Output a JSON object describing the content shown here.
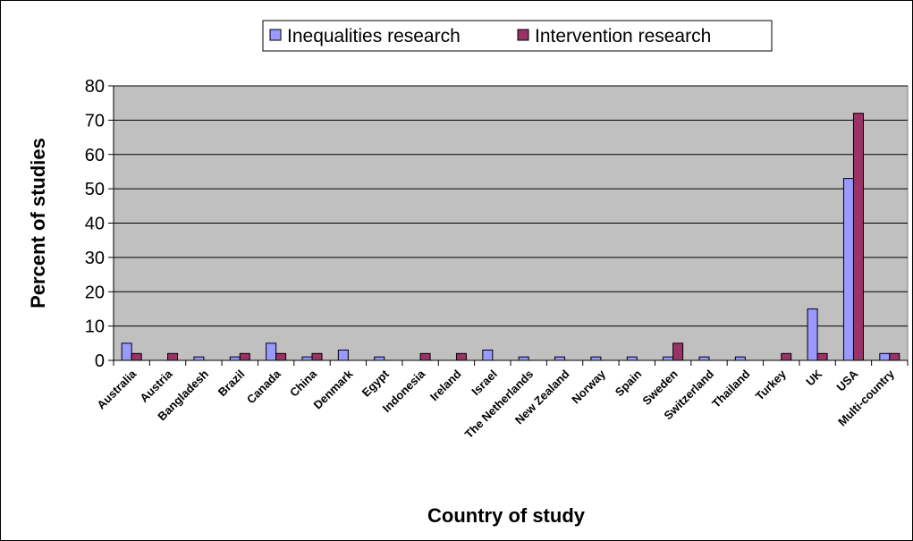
{
  "chart_data": {
    "type": "bar",
    "title": "",
    "xlabel": "Country of study",
    "ylabel": "Percent of studies",
    "ylim": [
      0,
      80
    ],
    "yticks": [
      "0",
      "10",
      "20",
      "30",
      "40",
      "50",
      "60",
      "70",
      "80"
    ],
    "grid": true,
    "legend_position": "top",
    "plot_background": "#c0c0c0",
    "categories": [
      "Australia",
      "Austria",
      "Bangladesh",
      "Brazil",
      "Canada",
      "China",
      "Denmark",
      "Egypt",
      "Indonesia",
      "Ireland",
      "Israel",
      "The Netherlands",
      "New Zealand",
      "Norway",
      "Spain",
      "Sweden",
      "Switzerland",
      "Thailand",
      "Turkey",
      "UK",
      "USA",
      "Multi-country"
    ],
    "series": [
      {
        "name": "Inequalities research",
        "color": "#9999ff",
        "values": [
          5,
          0,
          1,
          1,
          5,
          1,
          3,
          1,
          0,
          0,
          3,
          1,
          1,
          1,
          1,
          1,
          1,
          1,
          0,
          15,
          53,
          2
        ]
      },
      {
        "name": "Intervention research",
        "color": "#993366",
        "values": [
          2,
          2,
          0,
          2,
          2,
          2,
          0,
          0,
          2,
          2,
          0,
          0,
          0,
          0,
          0,
          5,
          0,
          0,
          2,
          2,
          72,
          2
        ]
      }
    ]
  }
}
